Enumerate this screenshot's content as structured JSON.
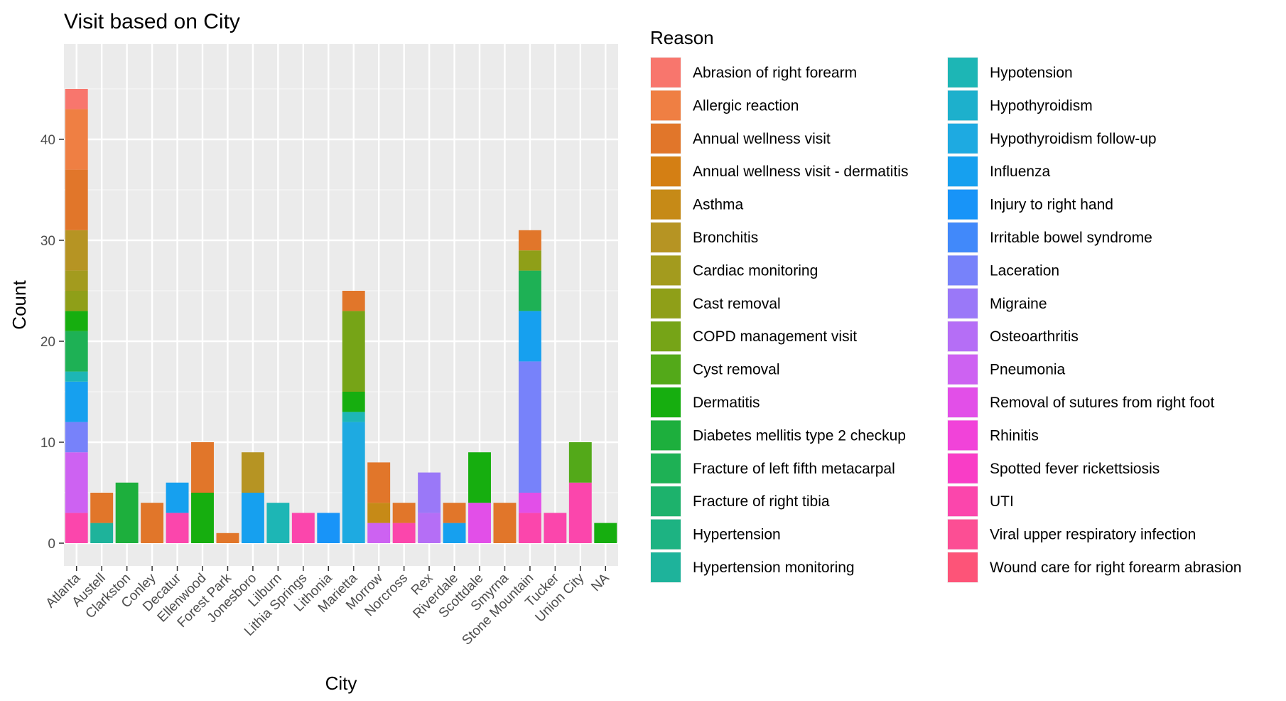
{
  "chart_data": {
    "type": "bar",
    "stacked": true,
    "title": "Visit based on City",
    "xlabel": "City",
    "ylabel": "Count",
    "ylim": [
      0,
      50
    ],
    "yticks": [
      0,
      10,
      20,
      30,
      40
    ],
    "grid": true,
    "legend": {
      "title": "Reason",
      "placement": "right",
      "columns": 2
    },
    "categories": [
      "Atlanta",
      "Austell",
      "Clarkston",
      "Conley",
      "Decatur",
      "Ellenwood",
      "Forest Park",
      "Jonesboro",
      "Lilburn",
      "Lithia Springs",
      "Lithonia",
      "Marietta",
      "Morrow",
      "Norcross",
      "Rex",
      "Riverdale",
      "Scottdale",
      "Smyrna",
      "Stone Mountain",
      "Tucker",
      "Union City",
      "NA"
    ],
    "series": [
      {
        "name": "Abrasion of right forearm",
        "color": "#F8766D",
        "values": [
          2,
          0,
          0,
          0,
          0,
          0,
          0,
          0,
          0,
          0,
          0,
          0,
          0,
          0,
          0,
          0,
          0,
          0,
          0,
          0,
          0,
          0
        ]
      },
      {
        "name": "Allergic reaction",
        "color": "#EF7F43",
        "values": [
          6,
          0,
          0,
          0,
          0,
          0,
          0,
          0,
          0,
          0,
          0,
          0,
          0,
          0,
          0,
          0,
          0,
          0,
          0,
          0,
          0,
          0
        ]
      },
      {
        "name": "Annual wellness visit",
        "color": "#E1762A",
        "values": [
          6,
          3,
          0,
          4,
          0,
          5,
          1,
          0,
          0,
          0,
          0,
          2,
          4,
          2,
          0,
          2,
          0,
          4,
          2,
          0,
          0,
          0
        ]
      },
      {
        "name": "Annual wellness visit - dermatitis",
        "color": "#D47F14",
        "values": [
          0,
          0,
          0,
          0,
          0,
          0,
          0,
          0,
          0,
          0,
          0,
          0,
          0,
          0,
          0,
          0,
          0,
          0,
          0,
          0,
          0,
          0
        ]
      },
      {
        "name": "Asthma",
        "color": "#C68A17",
        "values": [
          0,
          0,
          0,
          0,
          0,
          0,
          0,
          0,
          0,
          0,
          0,
          0,
          2,
          0,
          0,
          0,
          0,
          0,
          0,
          0,
          0,
          0
        ]
      },
      {
        "name": "Bronchitis",
        "color": "#B69423",
        "values": [
          4,
          0,
          0,
          0,
          0,
          0,
          0,
          4,
          0,
          0,
          0,
          0,
          0,
          0,
          0,
          0,
          0,
          0,
          0,
          0,
          0,
          0
        ]
      },
      {
        "name": "Cardiac monitoring",
        "color": "#A39B1E",
        "values": [
          2,
          0,
          0,
          0,
          0,
          0,
          0,
          0,
          0,
          0,
          0,
          0,
          0,
          0,
          0,
          0,
          0,
          0,
          0,
          0,
          0,
          0
        ]
      },
      {
        "name": "Cast removal",
        "color": "#8F9F18",
        "values": [
          2,
          0,
          0,
          0,
          0,
          0,
          0,
          0,
          0,
          0,
          0,
          0,
          0,
          0,
          0,
          0,
          0,
          0,
          2,
          0,
          0,
          0
        ]
      },
      {
        "name": "COPD management visit",
        "color": "#76A417",
        "values": [
          0,
          0,
          0,
          0,
          0,
          0,
          0,
          0,
          0,
          0,
          0,
          8,
          0,
          0,
          0,
          0,
          0,
          0,
          0,
          0,
          0,
          0
        ]
      },
      {
        "name": "Cyst removal",
        "color": "#53A919",
        "values": [
          0,
          0,
          0,
          0,
          0,
          0,
          0,
          0,
          0,
          0,
          0,
          0,
          0,
          0,
          0,
          0,
          0,
          0,
          0,
          0,
          4,
          0
        ]
      },
      {
        "name": "Dermatitis",
        "color": "#16AE0F",
        "values": [
          2,
          0,
          0,
          0,
          0,
          5,
          0,
          0,
          0,
          0,
          0,
          2,
          0,
          0,
          0,
          0,
          5,
          0,
          0,
          0,
          0,
          2
        ]
      },
      {
        "name": "Diabetes mellitis type 2 checkup",
        "color": "#1DAF3D",
        "values": [
          0,
          0,
          6,
          0,
          0,
          0,
          0,
          0,
          0,
          0,
          0,
          0,
          0,
          0,
          0,
          0,
          0,
          0,
          0,
          0,
          0,
          0
        ]
      },
      {
        "name": "Fracture of left fifth metacarpal",
        "color": "#1EB155",
        "values": [
          4,
          0,
          0,
          0,
          0,
          0,
          0,
          0,
          0,
          0,
          0,
          0,
          0,
          0,
          0,
          0,
          0,
          0,
          4,
          0,
          0,
          0
        ]
      },
      {
        "name": "Fracture of right tibia",
        "color": "#1DB26C",
        "values": [
          0,
          0,
          0,
          0,
          0,
          0,
          0,
          0,
          0,
          0,
          0,
          0,
          0,
          0,
          0,
          0,
          0,
          0,
          0,
          0,
          0,
          0
        ]
      },
      {
        "name": "Hypertension",
        "color": "#1DB382",
        "values": [
          0,
          0,
          0,
          0,
          0,
          0,
          0,
          0,
          0,
          0,
          0,
          0,
          0,
          0,
          0,
          0,
          0,
          0,
          0,
          0,
          0,
          0
        ]
      },
      {
        "name": "Hypertension monitoring",
        "color": "#1EB39B",
        "values": [
          0,
          2,
          0,
          0,
          0,
          0,
          0,
          0,
          0,
          0,
          0,
          0,
          0,
          0,
          0,
          0,
          0,
          0,
          0,
          0,
          0,
          0
        ]
      },
      {
        "name": "Hypotension",
        "color": "#1DB6B5",
        "values": [
          1,
          0,
          0,
          0,
          0,
          0,
          0,
          0,
          4,
          0,
          0,
          1,
          0,
          0,
          0,
          0,
          0,
          0,
          0,
          0,
          0,
          0
        ]
      },
      {
        "name": "Hypothyroidism",
        "color": "#1DB0CC",
        "values": [
          0,
          0,
          0,
          0,
          0,
          0,
          0,
          0,
          0,
          0,
          0,
          0,
          0,
          0,
          0,
          0,
          0,
          0,
          0,
          0,
          0,
          0
        ]
      },
      {
        "name": "Hypothyroidism follow-up",
        "color": "#1EAAE1",
        "values": [
          0,
          0,
          0,
          0,
          0,
          0,
          0,
          0,
          0,
          0,
          0,
          12,
          0,
          0,
          0,
          0,
          0,
          0,
          0,
          0,
          0,
          0
        ]
      },
      {
        "name": "Influenza",
        "color": "#16A0EF",
        "values": [
          4,
          0,
          0,
          0,
          3,
          0,
          0,
          5,
          0,
          0,
          0,
          0,
          0,
          0,
          0,
          2,
          0,
          0,
          5,
          0,
          0,
          0
        ]
      },
      {
        "name": "Injury to right hand",
        "color": "#1894F8",
        "values": [
          0,
          0,
          0,
          0,
          0,
          0,
          0,
          0,
          0,
          0,
          3,
          0,
          0,
          0,
          0,
          0,
          0,
          0,
          0,
          0,
          0,
          0
        ]
      },
      {
        "name": "Irritable bowel syndrome",
        "color": "#4189FA",
        "values": [
          0,
          0,
          0,
          0,
          0,
          0,
          0,
          0,
          0,
          0,
          0,
          0,
          0,
          0,
          0,
          0,
          0,
          0,
          0,
          0,
          0,
          0
        ]
      },
      {
        "name": "Laceration",
        "color": "#7782FA",
        "values": [
          3,
          0,
          0,
          0,
          0,
          0,
          0,
          0,
          0,
          0,
          0,
          0,
          0,
          0,
          0,
          0,
          0,
          0,
          13,
          0,
          0,
          0
        ]
      },
      {
        "name": "Migraine",
        "color": "#9A78F8",
        "values": [
          0,
          0,
          0,
          0,
          0,
          0,
          0,
          0,
          0,
          0,
          0,
          0,
          0,
          0,
          4,
          0,
          0,
          0,
          0,
          0,
          0,
          0
        ]
      },
      {
        "name": "Osteoarthritis",
        "color": "#B56EF6",
        "values": [
          0,
          0,
          0,
          0,
          0,
          0,
          0,
          0,
          0,
          0,
          0,
          0,
          0,
          0,
          3,
          0,
          0,
          0,
          0,
          0,
          0,
          0
        ]
      },
      {
        "name": "Pneumonia",
        "color": "#CD62F2",
        "values": [
          6,
          0,
          0,
          0,
          0,
          0,
          0,
          0,
          0,
          0,
          0,
          0,
          2,
          0,
          0,
          0,
          0,
          0,
          0,
          0,
          0,
          0
        ]
      },
      {
        "name": "Removal of sutures from right foot",
        "color": "#E24FE8",
        "values": [
          0,
          0,
          0,
          0,
          0,
          0,
          0,
          0,
          0,
          0,
          0,
          0,
          0,
          0,
          0,
          0,
          4,
          0,
          2,
          0,
          0,
          0
        ]
      },
      {
        "name": "Rhinitis",
        "color": "#F143D9",
        "values": [
          0,
          0,
          0,
          0,
          0,
          0,
          0,
          0,
          0,
          0,
          0,
          0,
          0,
          0,
          0,
          0,
          0,
          0,
          0,
          0,
          0,
          0
        ]
      },
      {
        "name": "Spotted fever rickettsiosis",
        "color": "#F93DC6",
        "values": [
          0,
          0,
          0,
          0,
          0,
          0,
          0,
          0,
          0,
          0,
          0,
          0,
          0,
          0,
          0,
          0,
          0,
          0,
          0,
          0,
          0,
          0
        ]
      },
      {
        "name": "UTI",
        "color": "#FB46AC",
        "values": [
          3,
          0,
          0,
          0,
          3,
          0,
          0,
          0,
          0,
          3,
          0,
          0,
          0,
          2,
          0,
          0,
          0,
          0,
          3,
          3,
          6,
          0
        ]
      },
      {
        "name": "Viral upper respiratory infection",
        "color": "#FC4E94",
        "values": [
          0,
          0,
          0,
          0,
          0,
          0,
          0,
          0,
          0,
          0,
          0,
          0,
          0,
          0,
          0,
          0,
          0,
          0,
          0,
          0,
          0,
          0
        ]
      },
      {
        "name": "Wound care for right forearm abrasion",
        "color": "#FD5478",
        "values": [
          0,
          0,
          0,
          0,
          0,
          0,
          0,
          0,
          0,
          0,
          0,
          0,
          0,
          0,
          0,
          0,
          0,
          0,
          0,
          0,
          0,
          0
        ]
      }
    ]
  }
}
